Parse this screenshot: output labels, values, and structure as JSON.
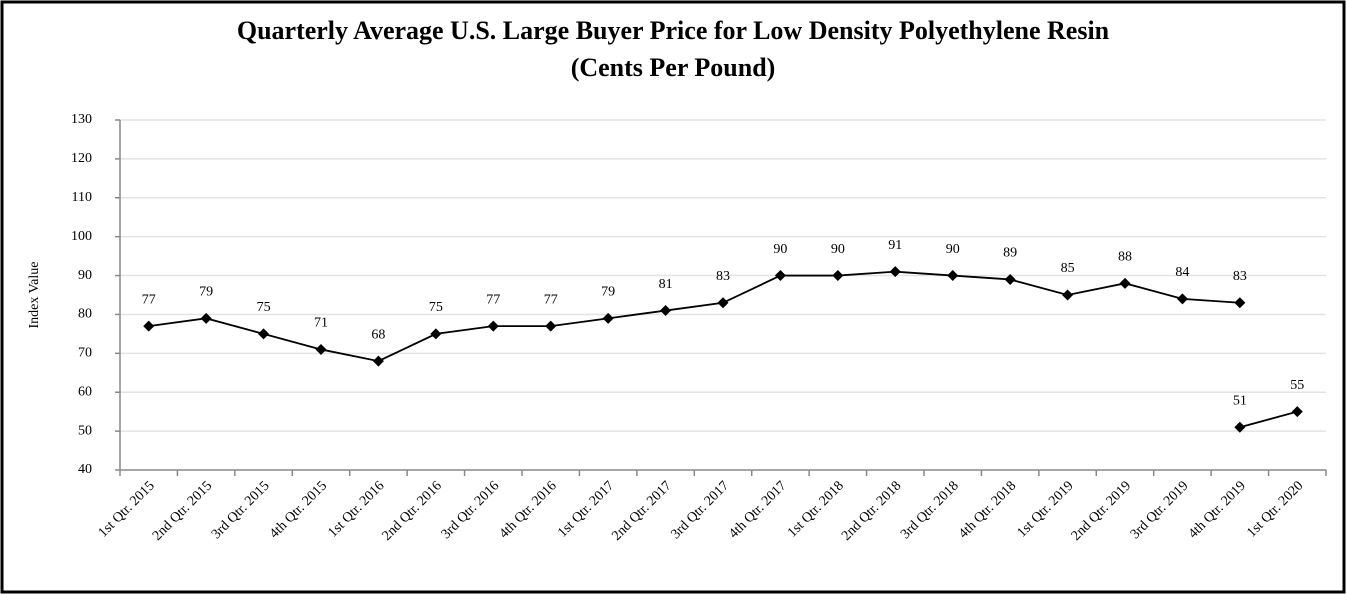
{
  "chart_data": {
    "type": "line",
    "title": "Quarterly Average U.S. Large Buyer Price for Low Density Polyethylene Resin",
    "subtitle": "(Cents Per Pound)",
    "y_label": "Index Value",
    "categories": [
      "1st Qtr. 2015",
      "2nd Qtr. 2015",
      "3rd Qtr. 2015",
      "4th Qtr. 2015",
      "1st Qtr. 2016",
      "2nd Qtr. 2016",
      "3rd Qtr. 2016",
      "4th Qtr. 2016",
      "1st Qtr. 2017",
      "2nd Qtr. 2017",
      "3rd Qtr. 2017",
      "4th Qtr. 2017",
      "1st Qtr. 2018",
      "2nd Qtr. 2018",
      "3rd Qtr. 2018",
      "4th Qtr. 2018",
      "1st Qtr. 2019",
      "2nd Qtr. 2019",
      "3rd Qtr. 2019",
      "4th Qtr. 2019",
      "1st Qtr. 2020"
    ],
    "series": [
      {
        "color": "#000000",
        "values": [
          77,
          79,
          75,
          71,
          68,
          75,
          77,
          77,
          79,
          81,
          83,
          90,
          90,
          91,
          90,
          89,
          85,
          88,
          84,
          83,
          null
        ]
      },
      {
        "color": "#000000",
        "values": [
          null,
          null,
          null,
          null,
          null,
          null,
          null,
          null,
          null,
          null,
          null,
          null,
          null,
          null,
          null,
          null,
          null,
          null,
          null,
          51,
          55
        ]
      }
    ],
    "ylim": [
      40,
      130
    ],
    "yticks": [
      40,
      50,
      60,
      70,
      80,
      90,
      100,
      110,
      120,
      130
    ],
    "grid": true
  }
}
